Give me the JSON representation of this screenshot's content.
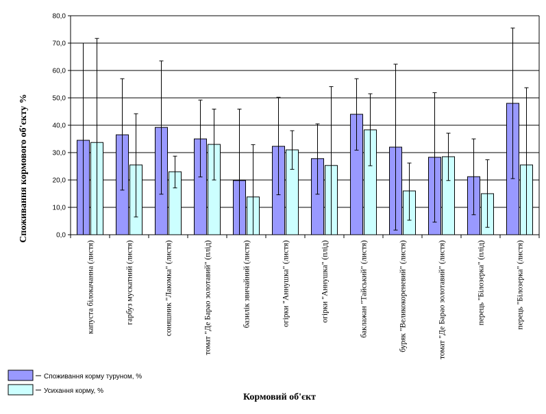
{
  "chart_data": {
    "type": "bar",
    "xlabel": "Кормовий об'єкт",
    "ylabel": "Споживання кормового об'єкту %",
    "ylim": [
      0,
      80
    ],
    "yticks": [
      "0,0",
      "10,0",
      "20,0",
      "30,0",
      "40,0",
      "50,0",
      "60,0",
      "70,0",
      "80,0"
    ],
    "grid": true,
    "legend_position": "bottom-left",
    "categories": [
      "капуста білокачанна (листя)",
      "гарбуз мускатний (листя)",
      "соняшник \"Лакомка\" (листя)",
      "томат \"Де Барао золотавий\" (плід)",
      "базилік звичайний (листя)",
      "огірки \"Аннушка\" (листя)",
      "огірки \"Аннушка\" (плід)",
      "баклажан \"Тайський\" (листя)",
      "буряк \"Великокореневий\" (листя)",
      "томат \"Де Барао золотавий\" (листя)",
      "перець \"Білозерка\" (плід)",
      "перець \"Білозерка\" (листя)"
    ],
    "series": [
      {
        "name": "Споживання корму туруном, %",
        "color": "#9999ff",
        "values": [
          34.5,
          36.5,
          39.2,
          35.0,
          19.8,
          32.3,
          27.8,
          44.0,
          32.0,
          28.3,
          21.2,
          48.0
        ],
        "error_high": [
          70.0,
          57.0,
          63.5,
          49.2,
          45.9,
          50.2,
          40.5,
          57.0,
          62.3,
          51.9,
          35.0,
          75.5
        ],
        "error_low": [
          0.0,
          16.3,
          14.8,
          21.1,
          0.0,
          14.6,
          14.8,
          30.9,
          1.7,
          4.6,
          7.3,
          20.5
        ]
      },
      {
        "name": "Усихання корму, %",
        "color": "#ccffff",
        "values": [
          33.7,
          25.5,
          23.0,
          33.0,
          13.8,
          31.0,
          25.3,
          38.3,
          16.0,
          28.5,
          15.0,
          25.5
        ],
        "error_high": [
          71.7,
          44.2,
          28.7,
          45.9,
          32.9,
          38.0,
          54.1,
          51.5,
          26.2,
          37.1,
          27.4,
          53.7
        ],
        "error_low": [
          0.0,
          6.5,
          17.1,
          20.0,
          0.0,
          23.9,
          0.0,
          25.2,
          5.3,
          19.8,
          2.7,
          0.0
        ]
      }
    ]
  }
}
